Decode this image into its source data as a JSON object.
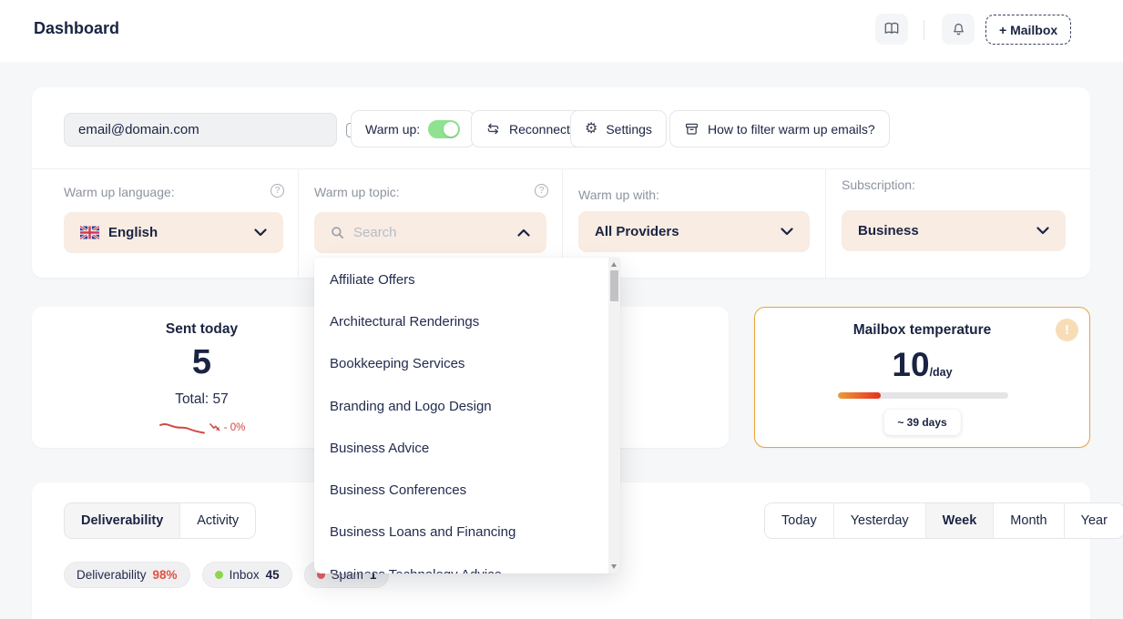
{
  "page": {
    "title": "Dashboard"
  },
  "header": {
    "mailbox_button": "+ Mailbox"
  },
  "toolbar": {
    "email_value": "email@domain.com",
    "warmup_label": "Warm up:",
    "reconnect_label": "Reconnect",
    "settings_label": "Settings",
    "filter_help_label": "How to filter warm up emails?"
  },
  "filters": {
    "language": {
      "label": "Warm up language:",
      "value": "English"
    },
    "topic": {
      "label": "Warm up topic:",
      "placeholder": "Search"
    },
    "provider": {
      "label": "Warm up with:",
      "value": "All Providers"
    },
    "subscription": {
      "label": "Subscription:",
      "value": "Business"
    }
  },
  "topic_dropdown": {
    "items": [
      "Affiliate Offers",
      "Architectural Renderings",
      "Bookkeeping Services",
      "Branding and Logo Design",
      "Business Advice",
      "Business Conferences",
      "Business Loans and Financing",
      "Business Technology Advice"
    ]
  },
  "stats": {
    "sent_today": {
      "title": "Sent today",
      "value": "5",
      "total_label": "Total: 57",
      "change_label": "- 0%"
    },
    "mailbox_temperature": {
      "title": "Mailbox temperature",
      "value": "10",
      "unit": "/day",
      "duration_label": "~ 39 days",
      "progress_percent": 25,
      "alert_glyph": "!"
    }
  },
  "panels": {
    "tabs": {
      "deliverability": "Deliverability",
      "activity": "Activity"
    },
    "active_tab": "Deliverability",
    "metrics": [
      {
        "label": "Deliverability",
        "value": "98%"
      },
      {
        "label": "Inbox",
        "value": "45"
      },
      {
        "label": "Spam",
        "value": "1"
      }
    ],
    "periods": [
      "Today",
      "Yesterday",
      "Week",
      "Month",
      "Year"
    ],
    "active_period": "Week"
  },
  "colors": {
    "navy_text": "#1a2442",
    "peach_select": "#f8ece3",
    "toggle_on_green": "#8fe28f",
    "negative_red": "#d0453e",
    "temperature_border": "#e7a43c",
    "progress_gradient_from": "#eb9c3a",
    "progress_gradient_to": "#e5301f",
    "inbox_dot_green": "#8ed650",
    "spam_dot_red": "#df5f63"
  }
}
